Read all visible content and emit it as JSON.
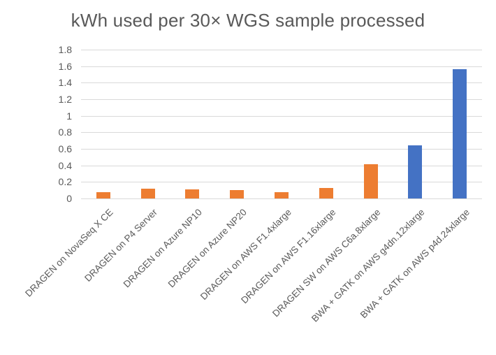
{
  "chart_data": {
    "type": "bar",
    "title": "kWh used per 30× WGS sample processed",
    "categories": [
      "DRAGEN on NovaSeq X CE",
      "DRAGEN on P4 Server",
      "DRAGEN on Azure NP10",
      "DRAGEN on Azure NP20",
      "DRAGEN on AWS F1.4xlarge",
      "DRAGEN on AWS F1.16xlarge",
      "DRAGEN SW on AWS C6a.8xlarge",
      "BWA + GATK on AWS g4dn.12xlarge",
      "BWA + GATK on AWS p4d.24xlarge"
    ],
    "values": [
      0.08,
      0.12,
      0.11,
      0.1,
      0.08,
      0.13,
      0.41,
      0.64,
      1.56
    ],
    "bar_colors": [
      "#ED7D31",
      "#ED7D31",
      "#ED7D31",
      "#ED7D31",
      "#ED7D31",
      "#ED7D31",
      "#ED7D31",
      "#4472C4",
      "#4472C4"
    ],
    "xlabel": "",
    "ylabel": "",
    "ylim": [
      0,
      1.8
    ],
    "yticks": [
      "0",
      "0.2",
      "0.4",
      "0.6",
      "0.8",
      "1",
      "1.2",
      "1.4",
      "1.6",
      "1.8"
    ],
    "grid": true,
    "legend_position": "none",
    "colors": {
      "series_dragen": "#ED7D31",
      "series_bwa_gatk": "#4472C4",
      "gridline": "#D9D9D9",
      "axis_text": "#595959",
      "title_text": "#595959",
      "background": "#FFFFFF"
    }
  }
}
